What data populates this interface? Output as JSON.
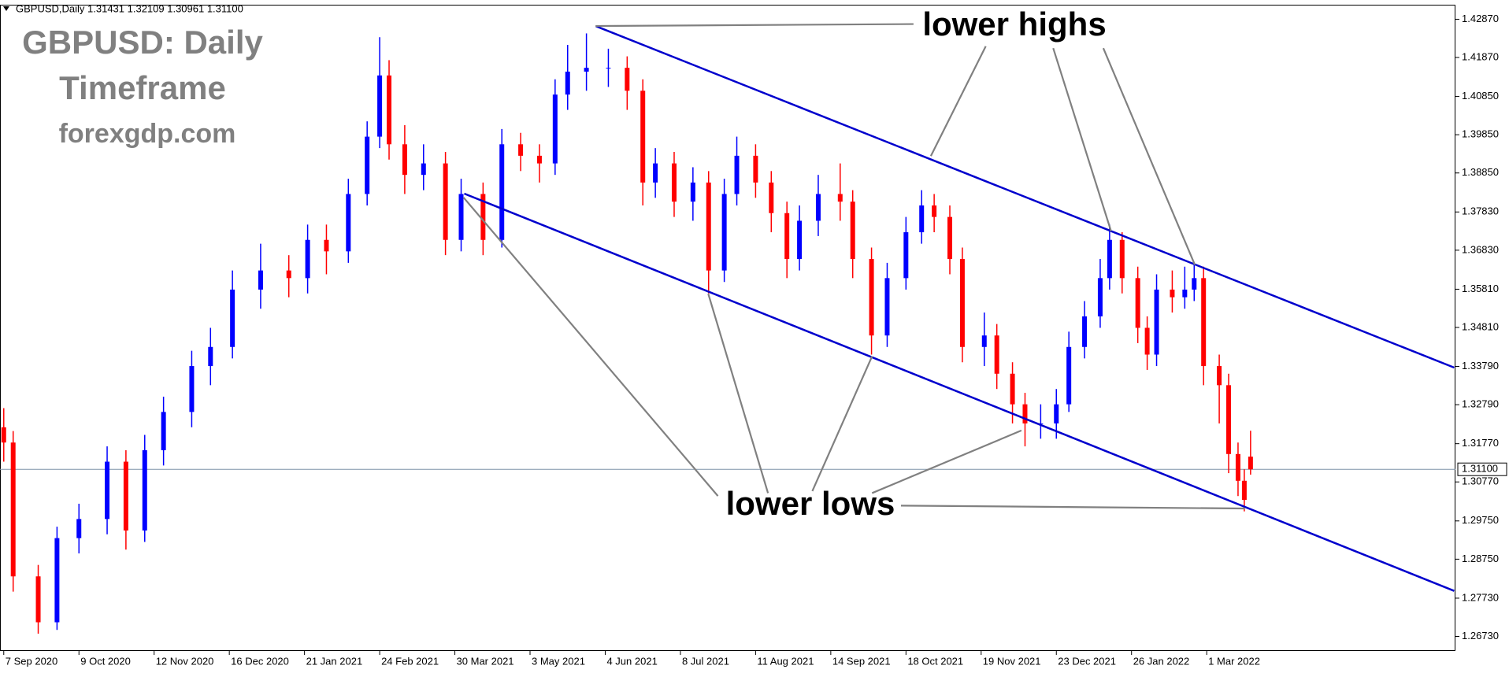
{
  "chart_data": {
    "type": "candlestick",
    "header": "GBPUSD,Daily  1.31431 1.32109 1.30961 1.31100",
    "title_lines": [
      "GBPUSD: Daily",
      "Timeframe",
      "forexgdp.com"
    ],
    "annotations": [
      "lower highs",
      "lower lows"
    ],
    "bull_color": "#0000ff",
    "bear_color": "#ff0000",
    "trendline_color": "#0000cd",
    "x": [
      0,
      3,
      11,
      17,
      24,
      33,
      39,
      45,
      51,
      60,
      66,
      73,
      82,
      91,
      97,
      103,
      110,
      116,
      120,
      123,
      128,
      134,
      141,
      146,
      153,
      159,
      165,
      171,
      176,
      180,
      186,
      193,
      199,
      204,
      208,
      214,
      220,
      225,
      230,
      234,
      240,
      245,
      250,
      254,
      260,
      267,
      271,
      277,
      282,
      288,
      293,
      297,
      302,
      306,
      313,
      317,
      322,
      326,
      331,
      336,
      340,
      345,
      350,
      353,
      357,
      362,
      365,
      368,
      373,
      377,
      380,
      383,
      388,
      391,
      394,
      396,
      398
    ],
    "open": [
      1.322,
      1.318,
      1.283,
      1.271,
      1.293,
      1.298,
      1.313,
      1.295,
      1.316,
      1.326,
      1.338,
      1.343,
      1.358,
      1.363,
      1.361,
      1.371,
      1.368,
      1.383,
      1.398,
      1.414,
      1.396,
      1.388,
      1.391,
      1.371,
      1.383,
      1.371,
      1.396,
      1.393,
      1.391,
      1.409,
      1.415,
      1.416,
      1.416,
      1.41,
      1.386,
      1.391,
      1.381,
      1.386,
      1.363,
      1.383,
      1.393,
      1.386,
      1.378,
      1.366,
      1.376,
      1.383,
      1.381,
      1.366,
      1.346,
      1.361,
      1.373,
      1.38,
      1.377,
      1.366,
      1.343,
      1.346,
      1.336,
      1.328,
      1.323,
      1.323,
      1.328,
      1.343,
      1.351,
      1.361,
      1.371,
      1.361,
      1.348,
      1.341,
      1.358,
      1.356,
      1.358,
      1.361,
      1.338,
      1.333,
      1.315,
      1.308,
      1.31431
    ],
    "high": [
      1.327,
      1.321,
      1.286,
      1.296,
      1.302,
      1.317,
      1.316,
      1.32,
      1.33,
      1.342,
      1.348,
      1.363,
      1.37,
      1.367,
      1.375,
      1.375,
      1.387,
      1.402,
      1.424,
      1.418,
      1.401,
      1.396,
      1.394,
      1.387,
      1.386,
      1.4,
      1.399,
      1.396,
      1.413,
      1.422,
      1.425,
      1.421,
      1.419,
      1.413,
      1.395,
      1.394,
      1.39,
      1.389,
      1.387,
      1.398,
      1.396,
      1.389,
      1.381,
      1.38,
      1.388,
      1.391,
      1.384,
      1.369,
      1.365,
      1.377,
      1.384,
      1.383,
      1.38,
      1.369,
      1.352,
      1.349,
      1.339,
      1.331,
      1.328,
      1.332,
      1.347,
      1.355,
      1.366,
      1.375,
      1.373,
      1.364,
      1.351,
      1.362,
      1.363,
      1.364,
      1.365,
      1.364,
      1.341,
      1.336,
      1.318,
      1.311,
      1.32109
    ],
    "low": [
      1.313,
      1.279,
      1.268,
      1.269,
      1.289,
      1.294,
      1.29,
      1.292,
      1.312,
      1.322,
      1.333,
      1.34,
      1.353,
      1.356,
      1.357,
      1.362,
      1.365,
      1.38,
      1.395,
      1.392,
      1.383,
      1.384,
      1.367,
      1.368,
      1.367,
      1.369,
      1.389,
      1.386,
      1.388,
      1.405,
      1.41,
      1.411,
      1.405,
      1.38,
      1.382,
      1.377,
      1.376,
      1.357,
      1.36,
      1.38,
      1.382,
      1.373,
      1.361,
      1.363,
      1.372,
      1.376,
      1.361,
      1.341,
      1.343,
      1.358,
      1.37,
      1.373,
      1.362,
      1.339,
      1.338,
      1.332,
      1.323,
      1.317,
      1.319,
      1.319,
      1.326,
      1.34,
      1.348,
      1.358,
      1.357,
      1.344,
      1.337,
      1.338,
      1.352,
      1.353,
      1.355,
      1.333,
      1.323,
      1.31,
      1.304,
      1.3,
      1.30961
    ],
    "close": [
      1.318,
      1.283,
      1.271,
      1.293,
      1.298,
      1.313,
      1.295,
      1.316,
      1.326,
      1.338,
      1.343,
      1.358,
      1.363,
      1.361,
      1.371,
      1.368,
      1.383,
      1.398,
      1.414,
      1.396,
      1.388,
      1.391,
      1.371,
      1.383,
      1.371,
      1.396,
      1.393,
      1.391,
      1.409,
      1.415,
      1.416,
      1.416,
      1.41,
      1.386,
      1.391,
      1.381,
      1.386,
      1.363,
      1.383,
      1.393,
      1.386,
      1.378,
      1.366,
      1.376,
      1.383,
      1.381,
      1.366,
      1.346,
      1.361,
      1.373,
      1.38,
      1.377,
      1.366,
      1.343,
      1.346,
      1.336,
      1.328,
      1.323,
      1.323,
      1.328,
      1.343,
      1.351,
      1.361,
      1.371,
      1.361,
      1.348,
      1.341,
      1.358,
      1.356,
      1.358,
      1.361,
      1.338,
      1.333,
      1.315,
      1.308,
      1.303,
      1.311
    ],
    "trendlines": [
      {
        "x": [
          189,
          463
        ],
        "y": [
          1.4269,
          1.3376
        ]
      },
      {
        "x": [
          147,
          463
        ],
        "y": [
          1.3831,
          1.2792
        ]
      }
    ],
    "last_price": {
      "value": 1.311,
      "label": "1.31100"
    },
    "xlim": [
      -1.2,
      463.4
    ],
    "ylim": [
      1.2637,
      1.4325
    ],
    "xticks": [
      {
        "value": 0,
        "label": "7 Sep 2020"
      },
      {
        "value": 24,
        "label": "9 Oct 2020"
      },
      {
        "value": 48,
        "label": "12 Nov 2020"
      },
      {
        "value": 72,
        "label": "16 Dec 2020"
      },
      {
        "value": 96,
        "label": "21 Jan 2021"
      },
      {
        "value": 120,
        "label": "24 Feb 2021"
      },
      {
        "value": 144,
        "label": "30 Mar 2021"
      },
      {
        "value": 168,
        "label": "3 May 2021"
      },
      {
        "value": 192,
        "label": "4 Jun 2021"
      },
      {
        "value": 216,
        "label": "8 Jul 2021"
      },
      {
        "value": 240,
        "label": "11 Aug 2021"
      },
      {
        "value": 264,
        "label": "14 Sep 2021"
      },
      {
        "value": 288,
        "label": "18 Oct 2021"
      },
      {
        "value": 312,
        "label": "19 Nov 2021"
      },
      {
        "value": 336,
        "label": "23 Dec 2021"
      },
      {
        "value": 360,
        "label": "26 Jan 2022"
      },
      {
        "value": 384,
        "label": "1 Mar 2022"
      }
    ],
    "yticks": [
      {
        "value": 1.4287,
        "label": "1.42870"
      },
      {
        "value": 1.4187,
        "label": "1.41870"
      },
      {
        "value": 1.4085,
        "label": "1.40850"
      },
      {
        "value": 1.3985,
        "label": "1.39850"
      },
      {
        "value": 1.3885,
        "label": "1.38850"
      },
      {
        "value": 1.3783,
        "label": "1.37830"
      },
      {
        "value": 1.3683,
        "label": "1.36830"
      },
      {
        "value": 1.3581,
        "label": "1.35810"
      },
      {
        "value": 1.3481,
        "label": "1.34810"
      },
      {
        "value": 1.3379,
        "label": "1.33790"
      },
      {
        "value": 1.3279,
        "label": "1.32790"
      },
      {
        "value": 1.3177,
        "label": "1.31770"
      },
      {
        "value": 1.3077,
        "label": "1.30770"
      },
      {
        "value": 1.2975,
        "label": "1.29750"
      },
      {
        "value": 1.2875,
        "label": "1.28750"
      },
      {
        "value": 1.2773,
        "label": "1.27730"
      },
      {
        "value": 1.2673,
        "label": "1.26730"
      }
    ]
  }
}
